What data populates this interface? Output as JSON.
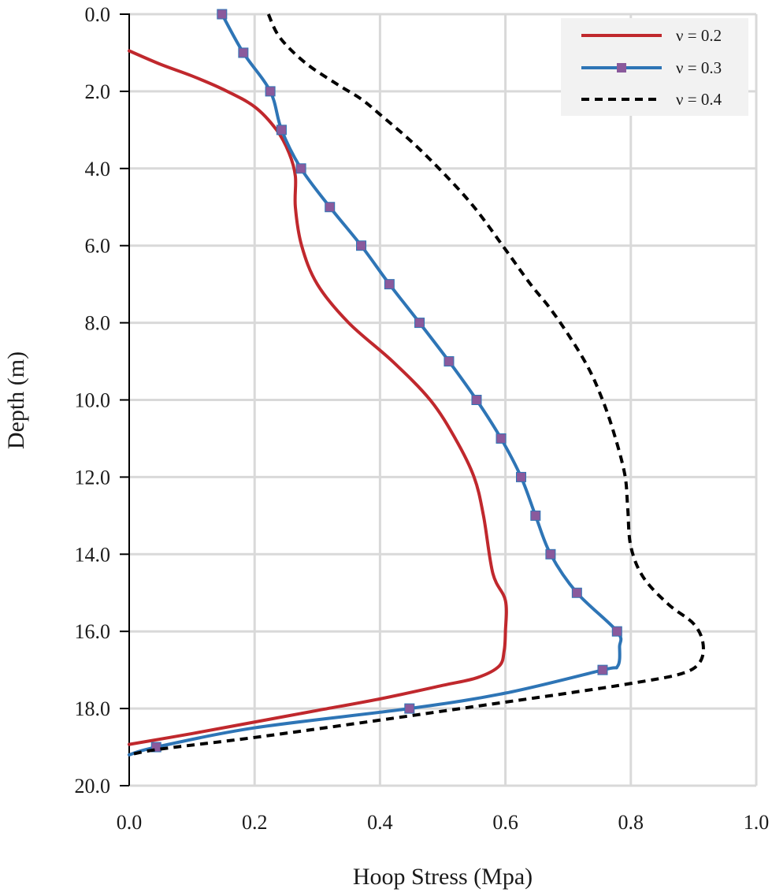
{
  "chart_data": {
    "type": "line",
    "title": "",
    "xlabel": "Hoop Stress (Mpa)",
    "ylabel": "Depth (m)",
    "xlim": [
      0.0,
      1.0
    ],
    "ylim": [
      0.0,
      20.0
    ],
    "y_inverted": true,
    "grid": true,
    "legend_position": "top-right",
    "x_ticks": [
      "0.0",
      "0.2",
      "0.4",
      "0.6",
      "0.8",
      "1.0"
    ],
    "y_ticks": [
      "0.0",
      "2.0",
      "4.0",
      "6.0",
      "8.0",
      "10.0",
      "12.0",
      "14.0",
      "16.0",
      "18.0",
      "20.0"
    ],
    "series": [
      {
        "name": "ν = 0.2",
        "color": "#c0282d",
        "style": "solid",
        "markers": false,
        "points": [
          [
            0.0,
            0.95
          ],
          [
            0.05,
            1.3
          ],
          [
            0.1,
            1.6
          ],
          [
            0.15,
            1.95
          ],
          [
            0.2,
            2.4
          ],
          [
            0.235,
            3.0
          ],
          [
            0.255,
            3.6
          ],
          [
            0.265,
            4.2
          ],
          [
            0.265,
            5.0
          ],
          [
            0.275,
            6.0
          ],
          [
            0.3,
            7.0
          ],
          [
            0.35,
            8.0
          ],
          [
            0.42,
            9.0
          ],
          [
            0.48,
            10.0
          ],
          [
            0.52,
            11.0
          ],
          [
            0.55,
            12.0
          ],
          [
            0.565,
            13.0
          ],
          [
            0.58,
            14.5
          ],
          [
            0.6,
            15.2
          ],
          [
            0.6,
            16.0
          ],
          [
            0.598,
            16.5
          ],
          [
            0.59,
            16.9
          ],
          [
            0.555,
            17.2
          ],
          [
            0.5,
            17.4
          ],
          [
            0.4,
            17.75
          ],
          [
            0.3,
            18.05
          ],
          [
            0.2,
            18.35
          ],
          [
            0.1,
            18.65
          ],
          [
            0.0,
            18.93
          ]
        ]
      },
      {
        "name": "ν = 0.3",
        "color": "#2e75b6",
        "style": "solid",
        "markers": true,
        "marker_color": "#8a5a9c",
        "points": [
          [
            0.148,
            0.0
          ],
          [
            0.182,
            1.0
          ],
          [
            0.225,
            2.0
          ],
          [
            0.243,
            3.0
          ],
          [
            0.274,
            4.0
          ],
          [
            0.32,
            5.0
          ],
          [
            0.37,
            6.0
          ],
          [
            0.415,
            7.0
          ],
          [
            0.463,
            8.0
          ],
          [
            0.51,
            9.0
          ],
          [
            0.554,
            10.0
          ],
          [
            0.593,
            11.0
          ],
          [
            0.625,
            12.0
          ],
          [
            0.648,
            13.0
          ],
          [
            0.672,
            14.0
          ],
          [
            0.714,
            15.0
          ],
          [
            0.778,
            16.0
          ],
          [
            0.755,
            17.0
          ],
          [
            0.447,
            18.0
          ],
          [
            0.043,
            19.0
          ]
        ],
        "curve_points": [
          [
            0.148,
            0.0
          ],
          [
            0.182,
            1.0
          ],
          [
            0.225,
            2.0
          ],
          [
            0.243,
            3.0
          ],
          [
            0.274,
            4.0
          ],
          [
            0.32,
            5.0
          ],
          [
            0.37,
            6.0
          ],
          [
            0.415,
            7.0
          ],
          [
            0.463,
            8.0
          ],
          [
            0.51,
            9.0
          ],
          [
            0.554,
            10.0
          ],
          [
            0.593,
            11.0
          ],
          [
            0.625,
            12.0
          ],
          [
            0.648,
            13.0
          ],
          [
            0.672,
            14.0
          ],
          [
            0.714,
            15.0
          ],
          [
            0.778,
            16.0
          ],
          [
            0.782,
            16.4
          ],
          [
            0.779,
            16.9
          ],
          [
            0.755,
            17.0
          ],
          [
            0.6,
            17.6
          ],
          [
            0.447,
            18.0
          ],
          [
            0.2,
            18.5
          ],
          [
            0.043,
            19.0
          ],
          [
            0.0,
            19.2
          ]
        ]
      },
      {
        "name": "ν = 0.4",
        "color": "#000000",
        "style": "dashed",
        "markers": false,
        "points": [
          [
            0.222,
            0.0
          ],
          [
            0.24,
            0.6
          ],
          [
            0.28,
            1.25
          ],
          [
            0.33,
            1.8
          ],
          [
            0.37,
            2.2
          ],
          [
            0.4,
            2.6
          ],
          [
            0.45,
            3.3
          ],
          [
            0.5,
            4.1
          ],
          [
            0.55,
            5.0
          ],
          [
            0.6,
            6.1
          ],
          [
            0.64,
            7.0
          ],
          [
            0.67,
            7.6
          ],
          [
            0.7,
            8.3
          ],
          [
            0.73,
            9.1
          ],
          [
            0.75,
            9.8
          ],
          [
            0.77,
            10.7
          ],
          [
            0.79,
            11.9
          ],
          [
            0.795,
            12.8
          ],
          [
            0.8,
            13.8
          ],
          [
            0.82,
            14.6
          ],
          [
            0.86,
            15.3
          ],
          [
            0.9,
            15.8
          ],
          [
            0.915,
            16.3
          ],
          [
            0.91,
            16.8
          ],
          [
            0.88,
            17.1
          ],
          [
            0.8,
            17.35
          ],
          [
            0.7,
            17.6
          ],
          [
            0.55,
            17.95
          ],
          [
            0.4,
            18.3
          ],
          [
            0.2,
            18.75
          ],
          [
            0.05,
            19.05
          ],
          [
            0.0,
            19.2
          ]
        ]
      }
    ]
  }
}
